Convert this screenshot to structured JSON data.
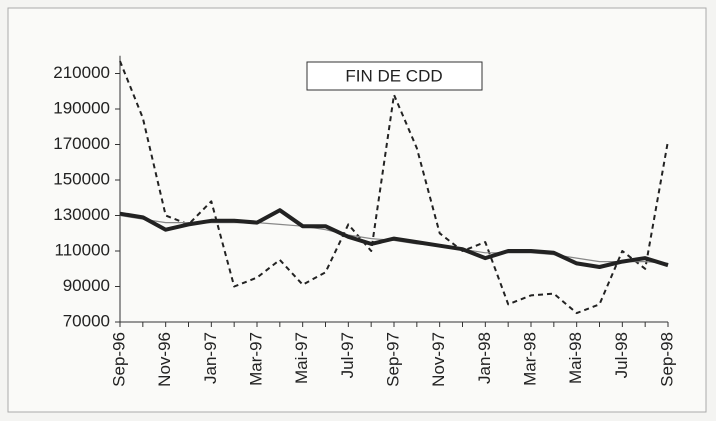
{
  "chart_data": {
    "type": "line",
    "title": "FIN DE CDD",
    "categories": [
      "Sep-96",
      null,
      "Nov-96",
      null,
      "Jan-97",
      null,
      "Mar-97",
      null,
      "Mai-97",
      null,
      "Jul-97",
      null,
      "Sep-97",
      null,
      "Nov-97",
      null,
      "Jan-98",
      null,
      "Mar-98",
      null,
      "Mai-98",
      null,
      "Jul-98",
      null,
      "Sep-98"
    ],
    "series": [
      {
        "color": "#222",
        "style": "dashed",
        "values": [
          217000,
          185000,
          130000,
          125000,
          138000,
          90000,
          95000,
          105000,
          91000,
          98000,
          125000,
          110000,
          198000,
          168000,
          120000,
          110000,
          115000,
          80000,
          85000,
          86000,
          75000,
          80000,
          110000,
          100000,
          172000
        ]
      },
      {
        "color": "#888",
        "style": "thin",
        "values": [
          130000,
          128000,
          126000,
          126000,
          126000,
          126000,
          126000,
          125000,
          124000,
          122000,
          119000,
          117000,
          116000,
          114000,
          113000,
          111000,
          109000,
          109000,
          109000,
          108000,
          106000,
          104000,
          104000,
          104000,
          103000
        ]
      },
      {
        "color": "#222",
        "style": "thick",
        "values": [
          131000,
          129000,
          122000,
          125000,
          127000,
          127000,
          126000,
          133000,
          124000,
          124000,
          118000,
          114000,
          117000,
          115000,
          113000,
          111000,
          106000,
          110000,
          110000,
          109000,
          103000,
          101000,
          104000,
          106000,
          102000
        ]
      }
    ],
    "ylim": [
      70000,
      220000
    ],
    "yticks": [
      70000,
      90000,
      110000,
      130000,
      150000,
      170000,
      190000,
      210000
    ]
  }
}
